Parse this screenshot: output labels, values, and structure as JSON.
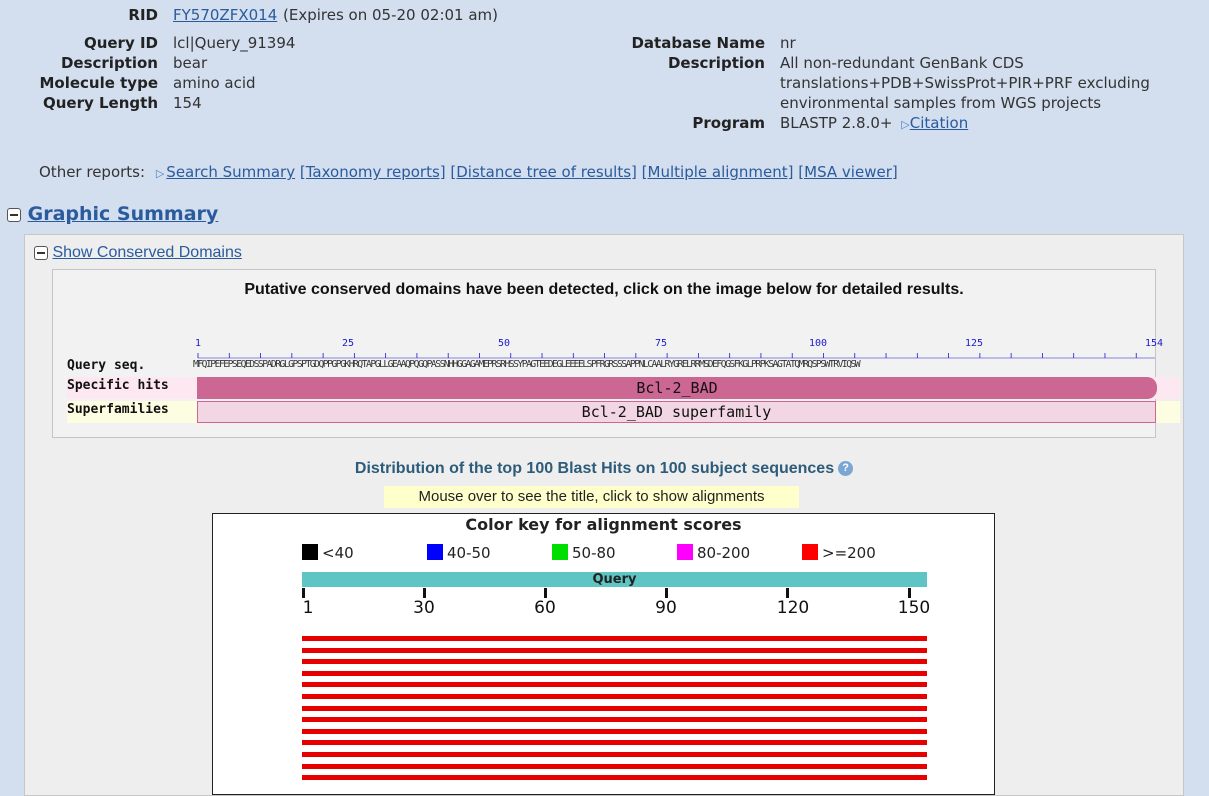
{
  "info": {
    "rid_label": "RID",
    "rid_value": "FY570ZFX014",
    "rid_expires": "(Expires on 05-20 02:01 am)",
    "query_id_label": "Query ID",
    "query_id_value": "lcl|Query_91394",
    "description_label": "Description",
    "description_value": "bear",
    "molecule_type_label": "Molecule type",
    "molecule_type_value": "amino acid",
    "query_length_label": "Query Length",
    "query_length_value": "154",
    "database_name_label": "Database Name",
    "database_name_value": "nr",
    "db_description_label": "Description",
    "db_description_line1": "All non-redundant GenBank CDS",
    "db_description_line2": "translations+PDB+SwissProt+PIR+PRF excluding",
    "db_description_line3": "environmental samples from WGS projects",
    "program_label": "Program",
    "program_value": "BLASTP 2.8.0+",
    "citation_link": "Citation"
  },
  "other_reports": {
    "label": "Other reports:",
    "search_summary": "Search Summary",
    "taxonomy": "[Taxonomy reports]",
    "distance_tree": "[Distance tree of results]",
    "multiple_alignment": "[Multiple alignment]",
    "msa_viewer": "[MSA viewer]"
  },
  "graphic_summary": {
    "title": "Graphic Summary",
    "show_cd_link": "Show Conserved Domains",
    "cd_message": "Putative conserved domains have been detected, click on the image below for detailed results.",
    "ruler": [
      "1",
      "25",
      "50",
      "75",
      "100",
      "125",
      "154"
    ],
    "query_seq_label": "Query seq.",
    "query_sequence": "MFQIPEFEPSEQEDSSPADRGLGPSPTGDQPPGPGKHRQTAPGLLGEAAQPQGQPASSNHHGGAGAMEPRSRHSSYPAGTEEDEGLEEEELSPFRGRSSSAPPNLCAALRYGRELRRMSDEFQGSFKGLPRPKSAGTATQMRQSPSWTRVIQSW",
    "specific_hits_label": "Specific hits",
    "specific_hit_name": "Bcl-2_BAD",
    "superfamilies_label": "Superfamilies",
    "superfamily_name": "Bcl-2_BAD superfamily"
  },
  "distribution": {
    "title": "Distribution of the top 100 Blast Hits on 100 subject sequences",
    "mouseover_hint": "Mouse over to see the title, click to show alignments",
    "color_key_title": "Color key for alignment scores",
    "legend": [
      {
        "label": "<40",
        "color": "#000000"
      },
      {
        "label": "40-50",
        "color": "#0000ff"
      },
      {
        "label": "50-80",
        "color": "#00dd00"
      },
      {
        "label": "80-200",
        "color": "#ff00ff"
      },
      {
        "label": ">=200",
        "color": "#ff0000"
      }
    ],
    "query_bar_label": "Query",
    "axis_ticks": [
      "1",
      "30",
      "60",
      "90",
      "120",
      "150"
    ],
    "visible_hit_count": 13,
    "hit_color": "#e60000"
  }
}
